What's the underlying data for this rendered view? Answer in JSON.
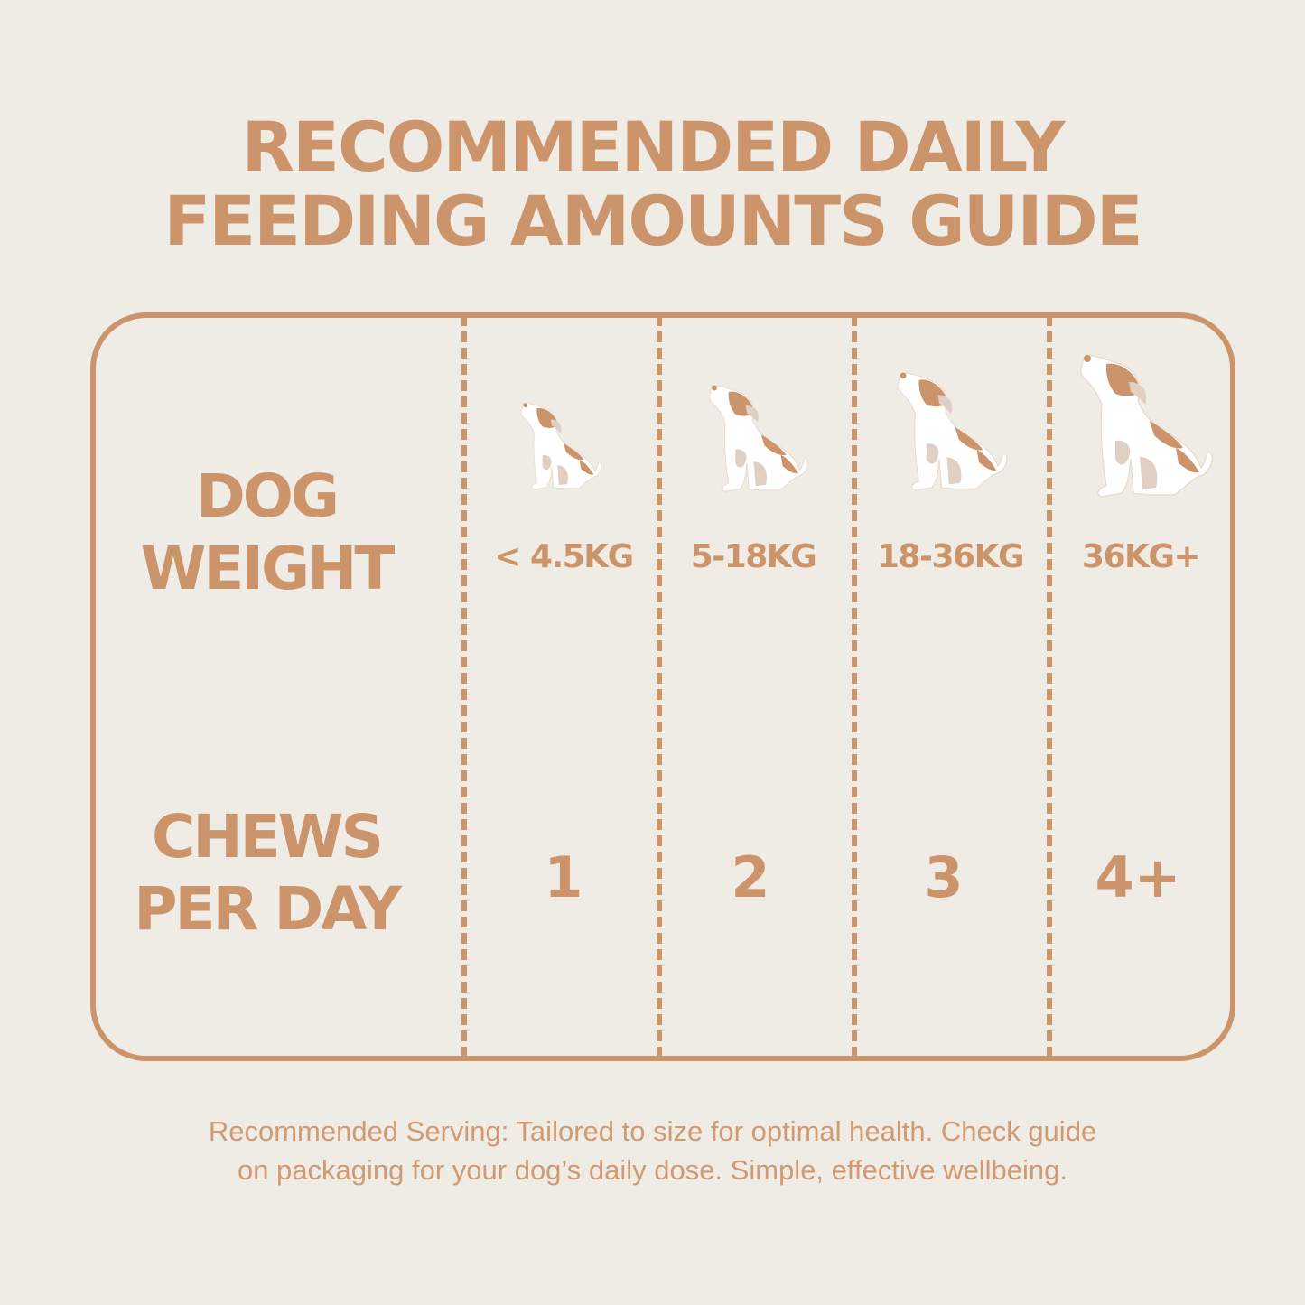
{
  "title": {
    "line1": "RECOMMENDED DAILY",
    "line2": "FEEDING AMOUNTS GUIDE"
  },
  "table": {
    "weight_label": {
      "line1": "DOG",
      "line2": "WEIGHT"
    },
    "chews_label": {
      "line1": "CHEWS",
      "line2": "PER DAY"
    },
    "columns": [
      {
        "weight": "< 4.5KG",
        "chews": "1",
        "icon": "dog-icon"
      },
      {
        "weight": "5-18KG",
        "chews": "2",
        "icon": "dog-icon"
      },
      {
        "weight": "18-36KG",
        "chews": "3",
        "icon": "dog-icon"
      },
      {
        "weight": "36KG+",
        "chews": "4+",
        "icon": "dog-icon"
      }
    ]
  },
  "footer": {
    "line1": "Recommended Serving: Tailored to size for optimal health. Check guide",
    "line2": "on packaging for your dog’s daily dose. Simple, effective wellbeing."
  },
  "colors": {
    "background": "#efebe5",
    "accent": "#cc946a",
    "dog_body": "#ffffff",
    "dog_shade": "#e0cfc3"
  }
}
